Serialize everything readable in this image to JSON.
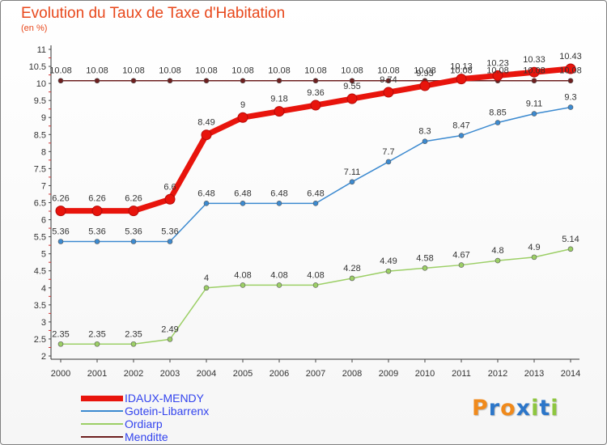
{
  "title": "Evolution du Taux de Taxe d'Habitation",
  "unit": "(en %)",
  "logo": {
    "letters": [
      "P",
      "r",
      "o",
      "x",
      "i",
      "t",
      "i"
    ],
    "colors": [
      "#f08a1c",
      "#2c76c9",
      "#f08a1c",
      "#2c76c9",
      "#8ec63f",
      "#2c76c9",
      "#8ec63f"
    ]
  },
  "chart_data": {
    "type": "line",
    "x": [
      "2000",
      "2001",
      "2002",
      "2003",
      "2004",
      "2005",
      "2006",
      "2007",
      "2008",
      "2009",
      "2010",
      "2011",
      "2012",
      "2013",
      "2014"
    ],
    "ylim": [
      2,
      11
    ],
    "yticks": [
      "2",
      "2.5",
      "3",
      "3.5",
      "4",
      "4.5",
      "5",
      "5.5",
      "6",
      "6.5",
      "7",
      "7.5",
      "8",
      "8.5",
      "9",
      "9.5",
      "10",
      "10.5",
      "11"
    ],
    "grid": false,
    "legend": "bottom-left",
    "series": [
      {
        "name": "IDAUX-MENDY",
        "color": "#e8140c",
        "values": [
          6.26,
          6.26,
          6.26,
          6.6,
          8.49,
          9,
          9.18,
          9.36,
          9.55,
          9.74,
          9.93,
          10.13,
          10.23,
          10.33,
          10.43
        ],
        "labels": [
          "6.26",
          "6.26",
          "6.26",
          "6.6",
          "8.49",
          "9",
          "9.18",
          "9.36",
          "9.55",
          "9.74",
          "9.93",
          "10.13",
          "10.23",
          "10.33",
          "10.43"
        ]
      },
      {
        "name": "Gotein-Libarrenx",
        "color": "#3c8ad0",
        "values": [
          5.36,
          5.36,
          5.36,
          5.36,
          6.48,
          6.48,
          6.48,
          6.48,
          7.11,
          7.7,
          8.3,
          8.47,
          8.85,
          9.11,
          9.3
        ],
        "labels": [
          "5.36",
          "5.36",
          "5.36",
          "5.36",
          "6.48",
          "6.48",
          "6.48",
          "6.48",
          "7.11",
          "7.7",
          "8.3",
          "8.47",
          "8.85",
          "9.11",
          "9.3"
        ]
      },
      {
        "name": "Ordiarp",
        "color": "#9ccf66",
        "values": [
          2.35,
          2.35,
          2.35,
          2.49,
          4,
          4.08,
          4.08,
          4.08,
          4.28,
          4.49,
          4.58,
          4.67,
          4.8,
          4.9,
          5.14
        ],
        "labels": [
          "2.35",
          "2.35",
          "2.35",
          "2.49",
          "4",
          "4.08",
          "4.08",
          "4.08",
          "4.28",
          "4.49",
          "4.58",
          "4.67",
          "4.8",
          "4.9",
          "5.14"
        ]
      },
      {
        "name": "Menditte",
        "color": "#6e1f1f",
        "values": [
          10.08,
          10.08,
          10.08,
          10.08,
          10.08,
          10.08,
          10.08,
          10.08,
          10.08,
          10.08,
          10.08,
          10.08,
          10.08,
          10.08,
          10.08
        ],
        "labels": [
          "10.08",
          "10.08",
          "10.08",
          "10.08",
          "10.08",
          "10.08",
          "10.08",
          "10.08",
          "10.08",
          "10.08",
          "10.08",
          "10.08",
          "10.08",
          "10.08",
          "10.08"
        ]
      }
    ]
  }
}
